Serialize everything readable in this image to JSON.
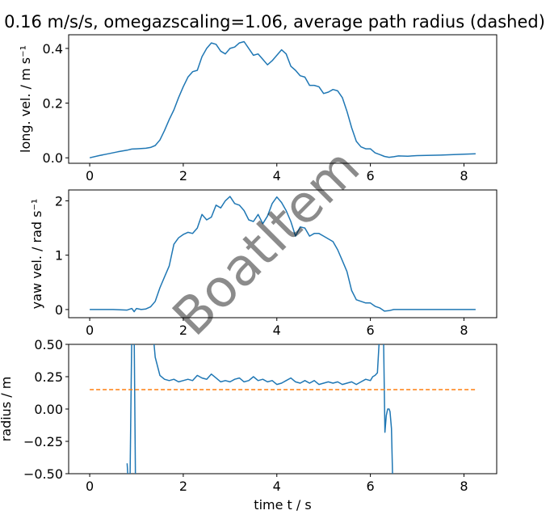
{
  "title": "0.16 m/s/s, omegazscaling=1.06, average path radius (dashed)",
  "watermark": "BoatItem",
  "colors": {
    "series": "#1f77b4",
    "mean": "#ff7f0e",
    "watermark": "#cccccc"
  },
  "chart_data": [
    {
      "type": "line",
      "ylabel": "long. vel. / m s⁻¹",
      "xlim": [
        -0.45,
        8.7
      ],
      "ylim": [
        -0.02,
        0.45
      ],
      "xticks": [
        0,
        2,
        4,
        6,
        8
      ],
      "xticklabels": [
        "0",
        "2",
        "4",
        "6",
        "8"
      ],
      "yticks": [
        0,
        0.2,
        0.4
      ],
      "yticklabels": [
        "0.0",
        "0.2",
        "0.4"
      ],
      "series": [
        {
          "x": [
            0,
            0.2,
            0.4,
            0.6,
            0.8,
            0.9,
            1.0,
            1.2,
            1.3,
            1.4,
            1.5,
            1.6,
            1.7,
            1.8,
            1.9,
            2.0,
            2.1,
            2.2,
            2.3,
            2.4,
            2.5,
            2.6,
            2.7,
            2.8,
            2.9,
            3.0,
            3.1,
            3.2,
            3.3,
            3.4,
            3.5,
            3.6,
            3.7,
            3.8,
            3.9,
            4.0,
            4.1,
            4.2,
            4.3,
            4.4,
            4.5,
            4.6,
            4.7,
            4.8,
            4.9,
            5.0,
            5.1,
            5.2,
            5.3,
            5.4,
            5.5,
            5.6,
            5.7,
            5.8,
            5.9,
            6.0,
            6.1,
            6.2,
            6.3,
            6.4,
            6.5,
            6.6,
            6.8,
            7.0,
            7.5,
            8.0,
            8.25
          ],
          "y": [
            0.0,
            0.008,
            0.015,
            0.022,
            0.028,
            0.032,
            0.033,
            0.035,
            0.038,
            0.045,
            0.065,
            0.1,
            0.14,
            0.175,
            0.22,
            0.26,
            0.295,
            0.315,
            0.32,
            0.37,
            0.4,
            0.42,
            0.415,
            0.39,
            0.38,
            0.4,
            0.405,
            0.42,
            0.425,
            0.4,
            0.375,
            0.38,
            0.36,
            0.34,
            0.355,
            0.375,
            0.395,
            0.38,
            0.335,
            0.32,
            0.3,
            0.295,
            0.265,
            0.265,
            0.26,
            0.235,
            0.24,
            0.25,
            0.245,
            0.22,
            0.17,
            0.11,
            0.06,
            0.04,
            0.033,
            0.033,
            0.018,
            0.012,
            0.005,
            0.002,
            0.004,
            0.007,
            0.006,
            0.008,
            0.01,
            0.013,
            0.015
          ]
        }
      ]
    },
    {
      "type": "line",
      "ylabel": "yaw vel. / rad s⁻¹",
      "xlim": [
        -0.45,
        8.7
      ],
      "ylim": [
        -0.15,
        2.2
      ],
      "xticks": [
        0,
        2,
        4,
        6,
        8
      ],
      "xticklabels": [
        "0",
        "2",
        "4",
        "6",
        "8"
      ],
      "yticks": [
        0,
        1,
        2
      ],
      "yticklabels": [
        "0",
        "1",
        "2"
      ],
      "series": [
        {
          "x": [
            0,
            0.5,
            0.8,
            0.9,
            0.95,
            1.0,
            1.1,
            1.2,
            1.3,
            1.4,
            1.5,
            1.6,
            1.7,
            1.8,
            1.9,
            2.0,
            2.1,
            2.2,
            2.3,
            2.4,
            2.5,
            2.6,
            2.7,
            2.8,
            2.9,
            3.0,
            3.1,
            3.2,
            3.3,
            3.4,
            3.5,
            3.6,
            3.7,
            3.8,
            3.9,
            4.0,
            4.1,
            4.2,
            4.3,
            4.4,
            4.5,
            4.6,
            4.7,
            4.8,
            4.9,
            5.0,
            5.1,
            5.2,
            5.3,
            5.4,
            5.5,
            5.6,
            5.7,
            5.8,
            5.9,
            6.0,
            6.1,
            6.2,
            6.3,
            6.4,
            6.5,
            7.0,
            8.25
          ],
          "y": [
            0,
            0,
            -0.01,
            0.02,
            -0.04,
            0.02,
            0.0,
            0.01,
            0.05,
            0.15,
            0.4,
            0.6,
            0.8,
            1.2,
            1.32,
            1.38,
            1.42,
            1.4,
            1.5,
            1.75,
            1.65,
            1.7,
            1.92,
            1.87,
            2.0,
            2.08,
            1.95,
            1.92,
            1.82,
            1.65,
            1.62,
            1.75,
            1.58,
            1.72,
            1.95,
            2.07,
            1.97,
            1.82,
            1.62,
            1.35,
            1.52,
            1.5,
            1.35,
            1.4,
            1.4,
            1.35,
            1.3,
            1.25,
            1.1,
            0.9,
            0.7,
            0.35,
            0.18,
            0.15,
            0.12,
            0.12,
            0.06,
            0.03,
            -0.03,
            -0.02,
            0.0,
            0.0,
            0.0
          ]
        }
      ]
    },
    {
      "type": "line",
      "ylabel": "radius / m",
      "xlabel": "time t / s",
      "xlim": [
        -0.45,
        8.7
      ],
      "ylim": [
        -0.5,
        0.5
      ],
      "xticks": [
        0,
        2,
        4,
        6,
        8
      ],
      "xticklabels": [
        "0",
        "2",
        "4",
        "6",
        "8"
      ],
      "yticks": [
        -0.5,
        -0.25,
        0,
        0.25,
        0.5
      ],
      "yticklabels": [
        "−0.50",
        "−0.25",
        "0.00",
        "0.25",
        "0.50"
      ],
      "series": [
        {
          "segments": [
            {
              "x": [
                0.8,
                0.83
              ],
              "y": [
                -0.42,
                -0.6
              ]
            },
            {
              "x": [
                0.86,
                0.9
              ],
              "y": [
                -0.6,
                0.6
              ]
            },
            {
              "x": [
                0.95,
                0.98
              ],
              "y": [
                0.6,
                -0.6
              ]
            },
            {
              "x": [
                1.35,
                1.4,
                1.5,
                1.6,
                1.7,
                1.8,
                1.9,
                2.0,
                2.1,
                2.2,
                2.3,
                2.4,
                2.5,
                2.6,
                2.7,
                2.8,
                2.9,
                3.0,
                3.1,
                3.2,
                3.3,
                3.4,
                3.5,
                3.6,
                3.7,
                3.8,
                3.9,
                4.0,
                4.1,
                4.2,
                4.3,
                4.4,
                4.5,
                4.6,
                4.7,
                4.8,
                4.9,
                5.0,
                5.1,
                5.2,
                5.3,
                5.4,
                5.5,
                5.6,
                5.7,
                5.8,
                5.9,
                6.0,
                6.05,
                6.1,
                6.15,
                6.2
              ],
              "y": [
                0.6,
                0.4,
                0.26,
                0.23,
                0.22,
                0.23,
                0.21,
                0.22,
                0.23,
                0.22,
                0.26,
                0.24,
                0.23,
                0.27,
                0.24,
                0.21,
                0.22,
                0.21,
                0.23,
                0.24,
                0.21,
                0.22,
                0.25,
                0.22,
                0.23,
                0.21,
                0.22,
                0.19,
                0.2,
                0.22,
                0.24,
                0.21,
                0.2,
                0.22,
                0.2,
                0.22,
                0.19,
                0.2,
                0.21,
                0.2,
                0.21,
                0.19,
                0.2,
                0.21,
                0.19,
                0.21,
                0.23,
                0.22,
                0.25,
                0.26,
                0.28,
                0.6
              ]
            },
            {
              "x": [
                6.28,
                6.31,
                6.34,
                6.37,
                6.4,
                6.42,
                6.45,
                6.48
              ],
              "y": [
                0.6,
                -0.18,
                -0.05,
                0.0,
                0.0,
                -0.02,
                -0.15,
                -0.6
              ]
            }
          ]
        },
        {
          "name": "mean",
          "style": "dashed",
          "x": [
            0,
            8.25
          ],
          "y": [
            0.15,
            0.15
          ]
        }
      ]
    }
  ]
}
